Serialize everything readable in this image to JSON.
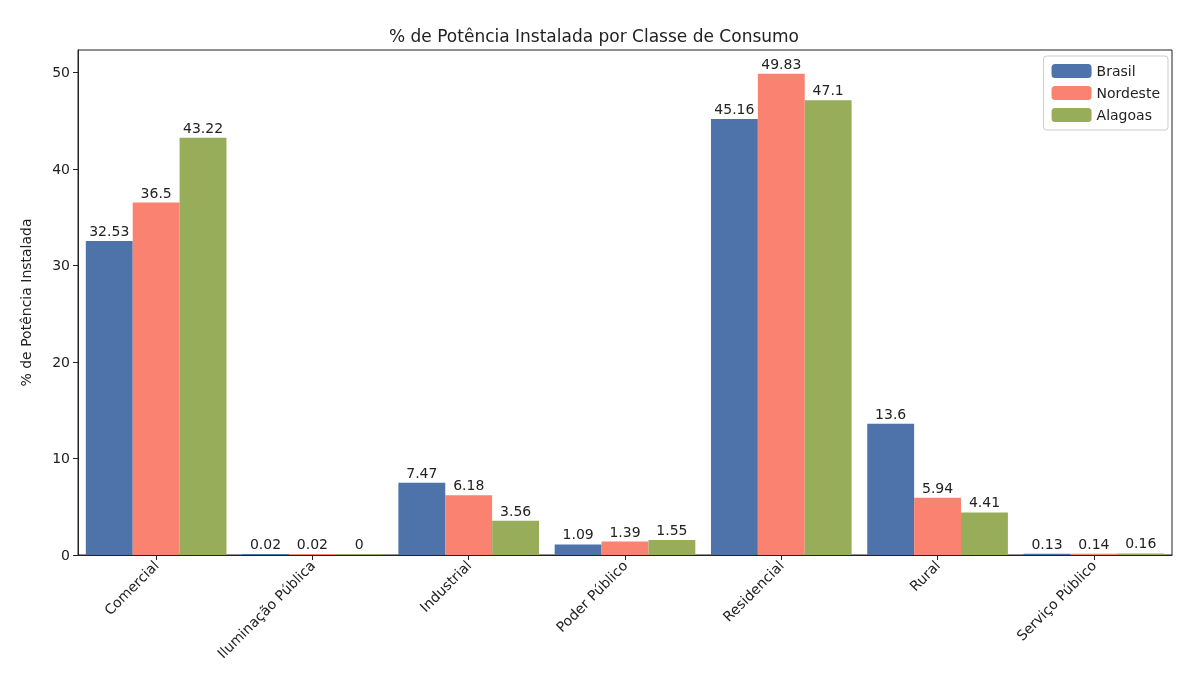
{
  "chart_data": {
    "type": "bar",
    "title": "% de Potência Instalada por Classe de Consumo",
    "ylabel": "% de Potência Instalada",
    "categories": [
      "Comercial",
      "Iluminação Pública",
      "Industrial",
      "Poder Público",
      "Residencial",
      "Rural",
      "Serviço Público"
    ],
    "series": [
      {
        "name": "Brasil",
        "color": "#4e72aa",
        "values": [
          32.53,
          0.02,
          7.47,
          1.09,
          45.16,
          13.6,
          0.13
        ]
      },
      {
        "name": "Nordeste",
        "color": "#fa8270",
        "values": [
          36.5,
          0.02,
          6.18,
          1.39,
          49.83,
          5.94,
          0.14
        ]
      },
      {
        "name": "Alagoas",
        "color": "#98ad5a",
        "values": [
          43.22,
          0,
          3.56,
          1.55,
          47.1,
          4.41,
          0.16
        ]
      }
    ],
    "ylim": [
      0,
      52.3
    ],
    "yticks": [
      0,
      10,
      20,
      30,
      40,
      50
    ],
    "data_labels": true,
    "grid": false,
    "legend": "top right"
  }
}
